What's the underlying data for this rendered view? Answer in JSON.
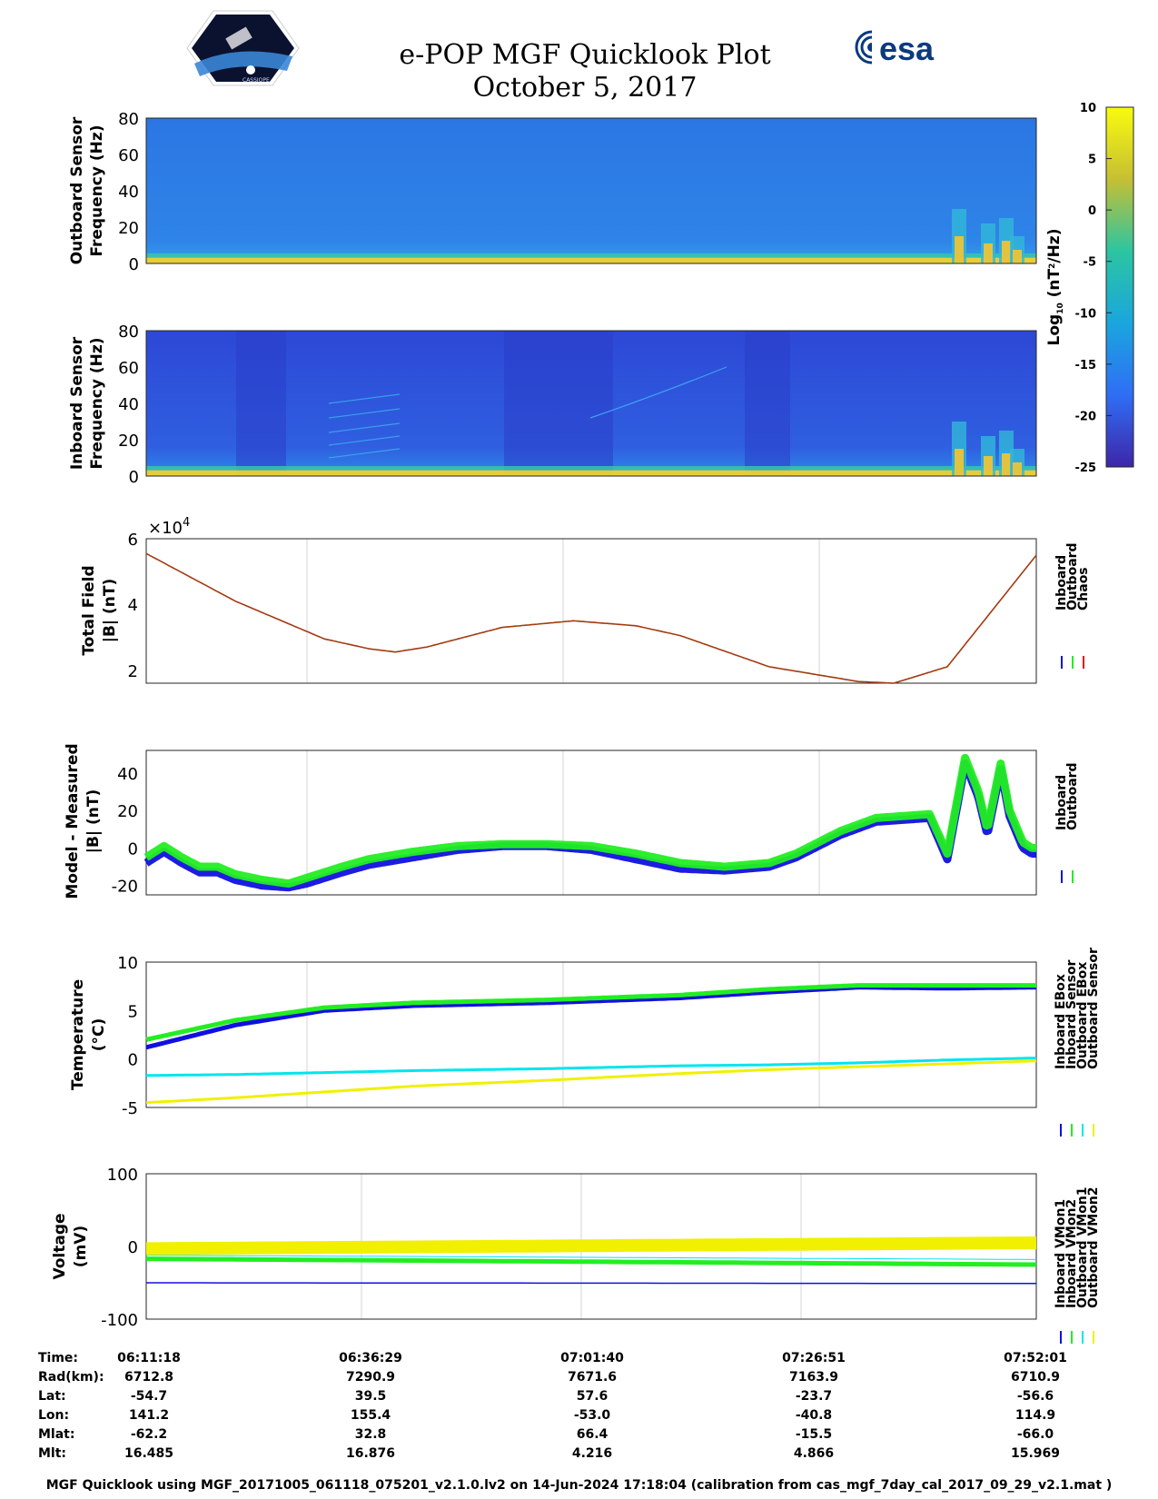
{
  "header": {
    "title_line1": "e-POP MGF Quicklook Plot",
    "title_line2": "October 5, 2017",
    "esa_logo_text": "esa",
    "cassiope_logo_text": "CASSIOPE"
  },
  "colors": {
    "inboard": "#1010e0",
    "outboard": "#22ee22",
    "chaos": "#e01010",
    "inboard_sensor": "#00e5ee",
    "outboard_sensor": "#f0f000",
    "field_curve": "#a33a10",
    "spec_bg_outboard": "#2a7ae0",
    "spec_bg_inboard": "#3050d8"
  },
  "colorbar": {
    "label_main": "Log",
    "label_sub": "10",
    "label_unit": " (nT",
    "label_sup": "2",
    "label_end": "/Hz)",
    "ticks": [
      "10",
      "5",
      "0",
      "-5",
      "-10",
      "-15",
      "-20",
      "-25"
    ],
    "range": [
      -25,
      10
    ]
  },
  "chart_data": [
    {
      "type": "heatmap",
      "id": "outboard_spectrogram",
      "ylabel_line1": "Outboard Sensor",
      "ylabel_line2": "Frequency (Hz)",
      "ylim": [
        0,
        80
      ],
      "yticks": [
        "80",
        "60",
        "40",
        "20",
        "0"
      ]
    },
    {
      "type": "heatmap",
      "id": "inboard_spectrogram",
      "ylabel_line1": "Inboard Sensor",
      "ylabel_line2": "Frequency (Hz)",
      "ylim": [
        0,
        80
      ],
      "yticks": [
        "80",
        "60",
        "40",
        "20",
        "0"
      ]
    },
    {
      "type": "line",
      "id": "total_field",
      "ylabel_line1": "Total Field",
      "ylabel_line2": "|B| (nT)",
      "multiplier_base": "×10",
      "multiplier_exp": "4",
      "ylim": [
        1.6,
        6
      ],
      "yticks": [
        "6",
        "4",
        "2"
      ],
      "legend": [
        "Inboard",
        "Outboard",
        "Chaos"
      ],
      "x_minutes": [
        0,
        10,
        20,
        25,
        28,
        31.5,
        40,
        48,
        55,
        60,
        70,
        80,
        84,
        90,
        100
      ],
      "y": [
        5.55,
        4.1,
        2.95,
        2.65,
        2.55,
        2.7,
        3.3,
        3.5,
        3.35,
        3.05,
        2.1,
        1.65,
        1.6,
        2.1,
        5.5
      ]
    },
    {
      "type": "line",
      "id": "model_minus_measured",
      "ylabel_line1": "Model - Measured",
      "ylabel_line2": "|B| (nT)",
      "ylim": [
        -25,
        52
      ],
      "yticks": [
        "40",
        "20",
        "0",
        "-20"
      ],
      "legend": [
        "Inboard",
        "Outboard"
      ],
      "series": [
        {
          "name": "Outboard",
          "x_minutes": [
            0,
            2,
            4,
            6,
            8,
            10,
            13,
            16,
            18,
            22,
            25,
            30,
            35,
            40,
            45,
            50,
            55,
            60,
            65,
            70,
            73,
            78,
            82,
            85,
            88,
            90,
            92,
            93.5,
            94.5,
            96,
            97,
            98.5,
            99.5,
            100
          ],
          "y": [
            -5,
            1,
            -5,
            -10,
            -10,
            -14,
            -17,
            -19,
            -16,
            -10,
            -6,
            -2,
            1,
            2,
            2,
            1,
            -3,
            -8,
            -10,
            -8,
            -3,
            9,
            16,
            17,
            18,
            -3,
            48,
            30,
            10,
            45,
            20,
            3,
            0,
            0
          ]
        },
        {
          "name": "Inboard",
          "x_minutes": [
            0,
            2,
            4,
            6,
            8,
            10,
            13,
            16,
            18,
            22,
            25,
            30,
            35,
            40,
            45,
            50,
            55,
            60,
            65,
            70,
            73,
            78,
            82,
            85,
            88,
            90,
            92,
            93.5,
            94.5,
            96,
            97,
            98.5,
            99.5,
            100
          ],
          "y": [
            -8,
            -2,
            -8,
            -13,
            -13,
            -17,
            -20,
            -21,
            -19,
            -13,
            -9,
            -5,
            -1,
            1,
            1,
            -1,
            -6,
            -11,
            -12,
            -10,
            -5,
            7,
            14,
            15,
            16,
            -6,
            45,
            27,
            7,
            42,
            17,
            0,
            -3,
            -3
          ]
        }
      ]
    },
    {
      "type": "line",
      "id": "temperature",
      "ylabel_line1": "Temperature",
      "ylabel_line2": "(°C)",
      "ylim": [
        -5,
        10
      ],
      "yticks": [
        "10",
        "5",
        "0",
        "-5"
      ],
      "legend": [
        "Inboard EBox",
        "Inboard Sensor",
        "Outboard EBox",
        "Outboard Sensor"
      ],
      "series": [
        {
          "name": "Inboard EBox",
          "x_minutes": [
            0,
            10,
            20,
            30,
            45,
            60,
            70,
            80,
            90,
            100
          ],
          "y": [
            1.2,
            3.5,
            5.0,
            5.5,
            5.8,
            6.3,
            6.9,
            7.4,
            7.3,
            7.4
          ]
        },
        {
          "name": "Outboard EBox",
          "x_minutes": [
            0,
            10,
            20,
            30,
            45,
            60,
            70,
            80,
            90,
            100
          ],
          "y": [
            2.0,
            4.0,
            5.3,
            5.8,
            6.1,
            6.6,
            7.2,
            7.6,
            7.6,
            7.6
          ]
        },
        {
          "name": "Inboard Sensor",
          "x_minutes": [
            0,
            10,
            20,
            30,
            45,
            60,
            70,
            80,
            90,
            100
          ],
          "y": [
            -1.7,
            -1.6,
            -1.4,
            -1.2,
            -1.0,
            -0.7,
            -0.6,
            -0.4,
            -0.1,
            0.1
          ]
        },
        {
          "name": "Outboard Sensor",
          "x_minutes": [
            0,
            10,
            20,
            30,
            45,
            60,
            70,
            80,
            90,
            100
          ],
          "y": [
            -4.5,
            -4.0,
            -3.4,
            -2.8,
            -2.2,
            -1.5,
            -1.1,
            -0.8,
            -0.5,
            -0.2
          ]
        }
      ]
    },
    {
      "type": "line",
      "id": "voltage",
      "ylabel_line1": "Voltage",
      "ylabel_line2": "(mV)",
      "ylim": [
        -100,
        100
      ],
      "yticks": [
        "100",
        "0",
        "-100"
      ],
      "legend": [
        "Inboard VMon1",
        "Inboard VMon2",
        "Outboard VMon1",
        "Outboard VMon2"
      ],
      "series": [
        {
          "name": "Inboard VMon1",
          "x_minutes": [
            0,
            100
          ],
          "y": [
            -50,
            -51
          ]
        },
        {
          "name": "Inboard VMon2",
          "x_minutes": [
            0,
            100
          ],
          "y": [
            -17,
            -25
          ]
        },
        {
          "name": "Outboard VMon1",
          "x_minutes": [
            0,
            100
          ],
          "y": [
            -12,
            -18
          ]
        },
        {
          "name": "Outboard VMon2",
          "x_minutes": [
            0,
            100
          ],
          "y": [
            -3,
            5
          ]
        }
      ]
    }
  ],
  "orbit_table": {
    "row_labels": [
      "Time:",
      "Rad(km):",
      "Lat:",
      "Lon:",
      "Mlat:",
      "Mlt:"
    ],
    "columns": [
      [
        "06:11:18",
        "6712.8",
        "-54.7",
        "141.2",
        "-62.2",
        "16.485"
      ],
      [
        "06:36:29",
        "7290.9",
        "39.5",
        "155.4",
        "32.8",
        "16.876"
      ],
      [
        "07:01:40",
        "7671.6",
        "57.6",
        "-53.0",
        "66.4",
        "4.216"
      ],
      [
        "07:26:51",
        "7163.9",
        "-23.7",
        "-40.8",
        "-15.5",
        "4.866"
      ],
      [
        "07:52:01",
        "6710.9",
        "-56.6",
        "114.9",
        "-66.0",
        "15.969"
      ]
    ]
  },
  "footer": "MGF Quicklook using MGF_20171005_061118_075201_v2.1.0.lv2 on 14-Jun-2024 17:18:04 (calibration from cas_mgf_7day_cal_2017_09_29_v2.1.mat )"
}
